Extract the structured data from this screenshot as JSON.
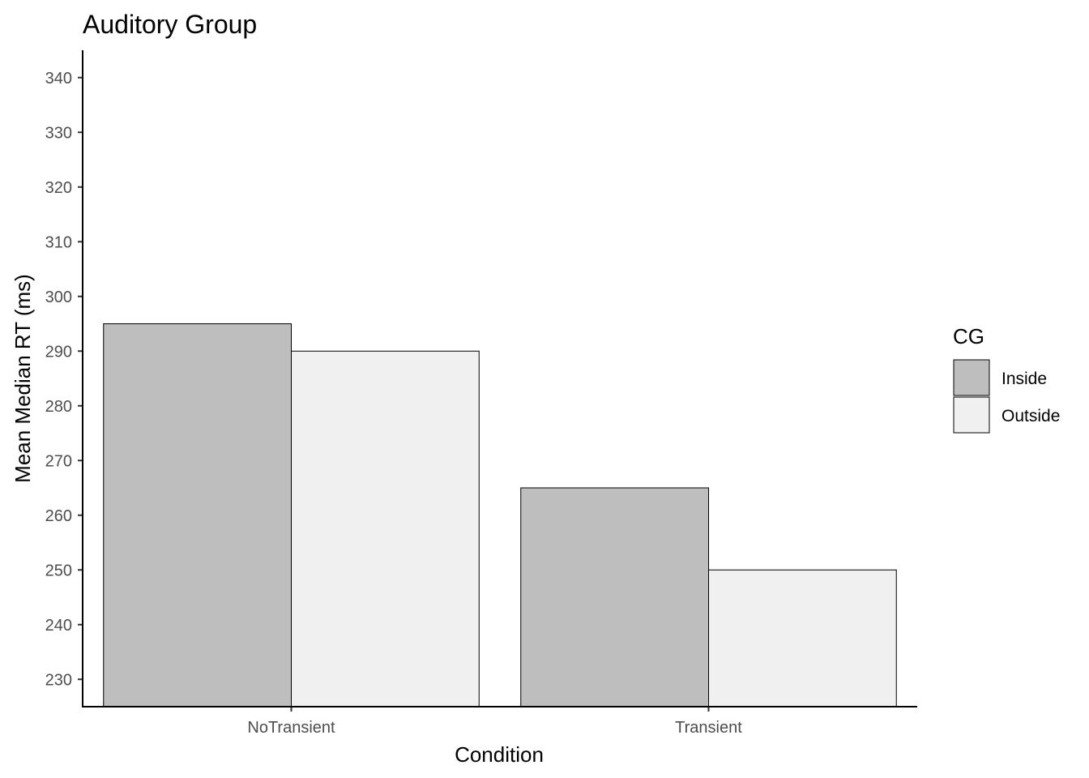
{
  "chart_data": {
    "type": "bar",
    "title": "Auditory Group",
    "xlabel": "Condition",
    "ylabel": "Mean Median RT (ms)",
    "categories": [
      "NoTransient",
      "Transient"
    ],
    "series": [
      {
        "name": "Inside",
        "values": [
          295,
          265
        ],
        "color": "#bebebe"
      },
      {
        "name": "Outside",
        "values": [
          290,
          250
        ],
        "color": "#f0f0f0"
      }
    ],
    "ylim": [
      225,
      345
    ],
    "yticks": [
      230,
      240,
      250,
      260,
      270,
      280,
      290,
      300,
      310,
      320,
      330,
      340
    ],
    "legend": {
      "title": "CG",
      "position": "right"
    },
    "grid": false
  }
}
